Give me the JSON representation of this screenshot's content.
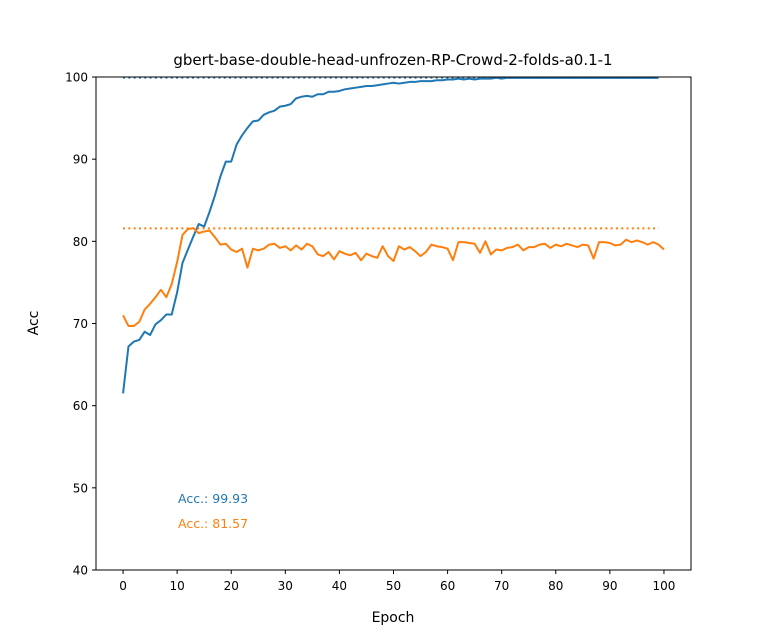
{
  "chart_data": {
    "type": "line",
    "title": "gbert-base-double-head-unfrozen-RP-Crowd-2-folds-a0.1-1",
    "xlabel": "Epoch",
    "ylabel": "Acc",
    "xlim": [
      -5,
      105
    ],
    "ylim": [
      40,
      100
    ],
    "xticks": [
      0,
      10,
      20,
      30,
      40,
      50,
      60,
      70,
      80,
      90,
      100
    ],
    "yticks": [
      40,
      50,
      60,
      70,
      80,
      90,
      100
    ],
    "grid": false,
    "series": [
      {
        "color": "#1f77b4",
        "style": "solid",
        "x_start": 0,
        "values": [
          61.5,
          67.2,
          67.8,
          68.0,
          69.0,
          68.6,
          69.9,
          70.4,
          71.1,
          71.1,
          73.8,
          77.4,
          79.0,
          80.6,
          82.1,
          81.8,
          83.6,
          85.6,
          87.9,
          89.7,
          89.7,
          91.8,
          92.9,
          93.8,
          94.6,
          94.7,
          95.4,
          95.7,
          95.9,
          96.4,
          96.5,
          96.7,
          97.4,
          97.6,
          97.7,
          97.6,
          97.9,
          97.9,
          98.2,
          98.2,
          98.3,
          98.5,
          98.6,
          98.7,
          98.8,
          98.9,
          98.9,
          99.0,
          99.1,
          99.2,
          99.3,
          99.2,
          99.3,
          99.4,
          99.4,
          99.5,
          99.5,
          99.5,
          99.6,
          99.6,
          99.7,
          99.7,
          99.8,
          99.7,
          99.8,
          99.7,
          99.8,
          99.8,
          99.8,
          99.9,
          99.8,
          99.9,
          99.9,
          99.9,
          99.9,
          99.9,
          99.9,
          99.9,
          99.9,
          99.9,
          99.9,
          99.9,
          99.9,
          99.9,
          99.9,
          99.9,
          99.9,
          99.9,
          99.9,
          99.9,
          99.9,
          99.9,
          99.9,
          99.9,
          99.9,
          99.9,
          99.9,
          99.9,
          99.9,
          99.9
        ]
      },
      {
        "color": "#ff7f0e",
        "style": "solid",
        "x_start": 0,
        "values": [
          71.0,
          69.7,
          69.7,
          70.2,
          71.7,
          72.4,
          73.2,
          74.1,
          73.2,
          74.8,
          77.5,
          80.8,
          81.5,
          81.6,
          81.0,
          81.2,
          81.3,
          80.5,
          79.6,
          79.7,
          79.0,
          78.7,
          79.1,
          76.8,
          79.1,
          78.9,
          79.1,
          79.6,
          79.7,
          79.2,
          79.4,
          78.9,
          79.5,
          79.0,
          79.7,
          79.4,
          78.4,
          78.2,
          78.7,
          77.8,
          78.8,
          78.5,
          78.3,
          78.6,
          77.7,
          78.5,
          78.2,
          78.0,
          79.4,
          78.2,
          77.6,
          79.4,
          79.0,
          79.3,
          78.8,
          78.2,
          78.7,
          79.6,
          79.4,
          79.3,
          79.1,
          77.7,
          79.9,
          79.9,
          79.8,
          79.7,
          78.6,
          80.0,
          78.4,
          79.0,
          78.9,
          79.2,
          79.3,
          79.6,
          78.9,
          79.3,
          79.3,
          79.6,
          79.7,
          79.2,
          79.6,
          79.4,
          79.7,
          79.5,
          79.3,
          79.6,
          79.5,
          77.9,
          79.9,
          79.9,
          79.8,
          79.5,
          79.6,
          80.2,
          79.9,
          80.1,
          79.9,
          79.6,
          79.9,
          79.6,
          79.0
        ]
      },
      {
        "color": "#1f77b4",
        "style": "dotted",
        "x": [
          0,
          99
        ],
        "values": [
          99.93,
          99.93
        ]
      },
      {
        "color": "#ff7f0e",
        "style": "dotted",
        "x": [
          0,
          99
        ],
        "values": [
          81.57,
          81.57
        ]
      }
    ],
    "annotations": [
      {
        "text": "Acc.: 99.93",
        "color": "#1f77b4"
      },
      {
        "text": "Acc.: 81.57",
        "color": "#ff7f0e"
      }
    ]
  }
}
